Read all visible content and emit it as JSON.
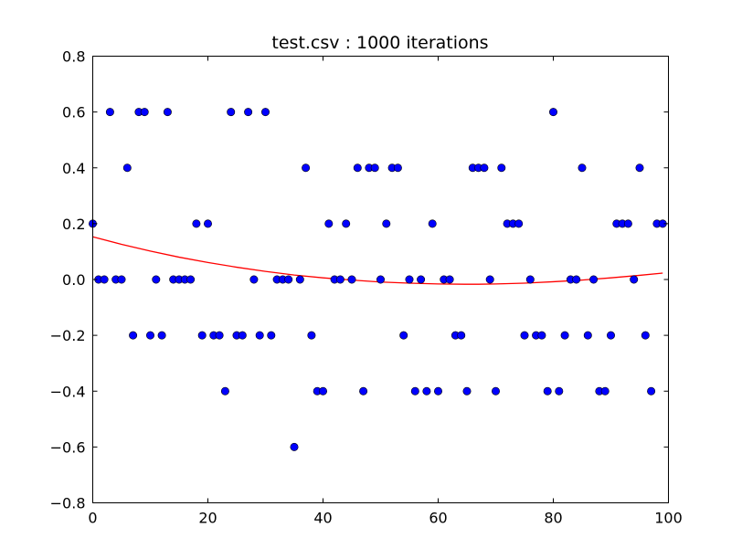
{
  "chart_data": {
    "type": "scatter",
    "title": "test.csv : 1000 iterations",
    "xlabel": "",
    "ylabel": "",
    "xlim": [
      0,
      100
    ],
    "ylim": [
      -0.8,
      0.8
    ],
    "grid": false,
    "x_ticks": [
      0,
      20,
      40,
      60,
      80,
      100
    ],
    "y_ticks": [
      -0.8,
      -0.6,
      -0.4,
      -0.2,
      0.0,
      0.2,
      0.4,
      0.6,
      0.8
    ],
    "x_tick_labels": [
      "0",
      "20",
      "40",
      "60",
      "80",
      "100"
    ],
    "y_tick_labels": [
      "−0.8",
      "−0.6",
      "−0.4",
      "−0.2",
      "0.0",
      "0.2",
      "0.4",
      "0.6",
      "0.8"
    ],
    "points": {
      "color": "#0000ff",
      "x": [
        0,
        1,
        2,
        3,
        4,
        5,
        6,
        7,
        8,
        9,
        10,
        11,
        12,
        13,
        14,
        15,
        16,
        17,
        18,
        19,
        20,
        21,
        22,
        23,
        24,
        25,
        26,
        27,
        28,
        29,
        30,
        31,
        32,
        33,
        34,
        35,
        36,
        37,
        38,
        39,
        40,
        41,
        42,
        43,
        44,
        45,
        46,
        47,
        48,
        49,
        50,
        51,
        52,
        53,
        54,
        55,
        56,
        57,
        58,
        59,
        60,
        61,
        62,
        63,
        64,
        65,
        66,
        67,
        68,
        69,
        70,
        71,
        72,
        73,
        74,
        75,
        76,
        77,
        78,
        79,
        80,
        81,
        82,
        83,
        84,
        85,
        86,
        87,
        88,
        89,
        90,
        91,
        92,
        93,
        94,
        95,
        96,
        97,
        98,
        99
      ],
      "y": [
        0.2,
        0.0,
        0.0,
        0.6,
        0.0,
        0.0,
        0.4,
        -0.2,
        0.6,
        0.6,
        -0.2,
        0.0,
        -0.2,
        0.6,
        0.0,
        0.0,
        0.0,
        0.0,
        0.2,
        -0.2,
        0.2,
        -0.2,
        -0.2,
        -0.4,
        0.6,
        -0.2,
        -0.2,
        0.6,
        0.0,
        -0.2,
        0.6,
        -0.2,
        0.0,
        0.0,
        0.0,
        -0.6,
        0.0,
        0.4,
        -0.2,
        -0.4,
        -0.4,
        0.2,
        0.0,
        0.0,
        0.2,
        0.0,
        0.4,
        -0.4,
        0.4,
        0.4,
        0.0,
        0.2,
        0.4,
        0.4,
        -0.2,
        0.0,
        -0.4,
        0.0,
        -0.4,
        0.2,
        -0.4,
        0.0,
        0.0,
        -0.2,
        -0.2,
        -0.4,
        0.4,
        0.4,
        0.4,
        0.0,
        -0.4,
        0.4,
        0.2,
        0.2,
        0.2,
        -0.2,
        0.0,
        -0.2,
        -0.2,
        -0.4,
        0.6,
        -0.4,
        -0.2,
        0.0,
        0.0,
        0.4,
        -0.2,
        0.0,
        -0.4,
        -0.4,
        -0.2,
        0.2,
        0.2,
        0.2,
        0.0,
        0.4,
        -0.2,
        -0.4,
        0.2,
        0.2
      ]
    },
    "fit_curve": {
      "color": "#ff0000",
      "type": "quadratic",
      "x": [
        0,
        5,
        10,
        15,
        20,
        25,
        30,
        35,
        40,
        45,
        50,
        55,
        60,
        65,
        67,
        70,
        75,
        80,
        85,
        90,
        95,
        99
      ],
      "y": [
        0.153,
        0.126,
        0.102,
        0.08,
        0.061,
        0.044,
        0.029,
        0.016,
        0.006,
        -0.002,
        -0.009,
        -0.013,
        -0.016,
        -0.017,
        -0.017,
        -0.016,
        -0.013,
        -0.008,
        -0.002,
        0.006,
        0.015,
        0.023
      ]
    }
  }
}
